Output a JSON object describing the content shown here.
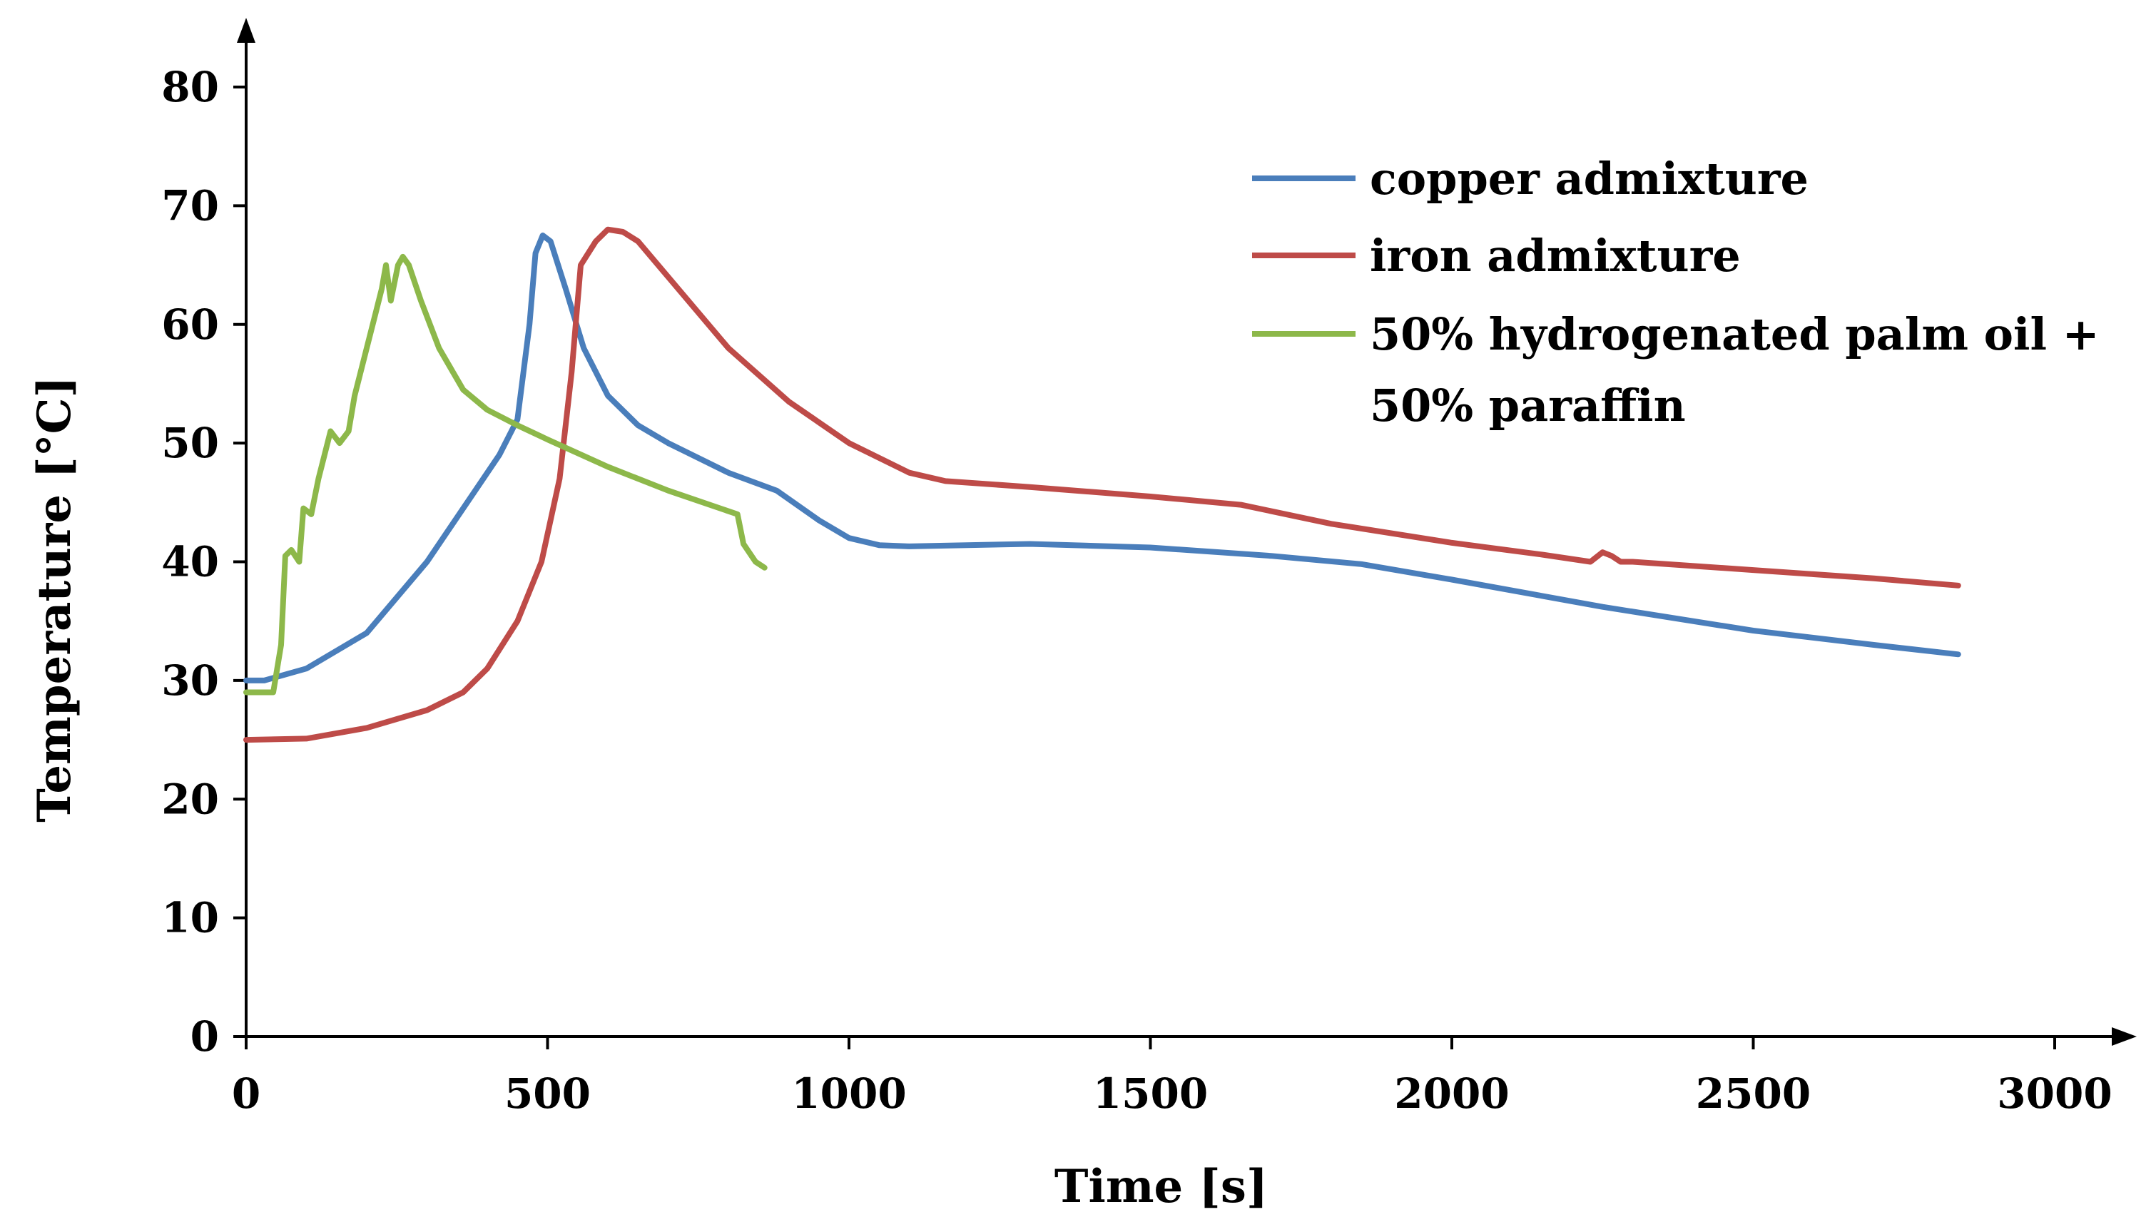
{
  "chart_data": {
    "type": "line",
    "title": "",
    "xlabel": "Time [s]",
    "ylabel": "Temperature [°C]",
    "xlim": [
      0,
      3000
    ],
    "ylim": [
      0,
      80
    ],
    "x_ticks": [
      0,
      500,
      1000,
      1500,
      2000,
      2500,
      3000
    ],
    "y_ticks": [
      0,
      10,
      20,
      30,
      40,
      50,
      60,
      70,
      80
    ],
    "x_tick_labels": [
      "0",
      "500",
      "1000",
      "1500",
      "2000",
      "2500",
      "3000"
    ],
    "y_tick_labels": [
      "0",
      "10",
      "20",
      "30",
      "40",
      "50",
      "60",
      "70",
      "80"
    ],
    "grid": false,
    "legend_position": "top-right",
    "series": [
      {
        "name": "copper admixture",
        "color": "#4a7ebb",
        "points": [
          [
            0,
            30
          ],
          [
            30,
            30
          ],
          [
            100,
            31
          ],
          [
            200,
            34
          ],
          [
            300,
            40
          ],
          [
            380,
            46
          ],
          [
            420,
            49
          ],
          [
            450,
            52
          ],
          [
            470,
            60
          ],
          [
            480,
            66
          ],
          [
            492,
            67.5
          ],
          [
            505,
            67
          ],
          [
            530,
            63
          ],
          [
            560,
            58
          ],
          [
            600,
            54
          ],
          [
            650,
            51.5
          ],
          [
            700,
            50
          ],
          [
            800,
            47.5
          ],
          [
            880,
            46
          ],
          [
            950,
            43.5
          ],
          [
            1000,
            42
          ],
          [
            1050,
            41.4
          ],
          [
            1100,
            41.3
          ],
          [
            1300,
            41.5
          ],
          [
            1500,
            41.2
          ],
          [
            1700,
            40.5
          ],
          [
            1850,
            39.8
          ],
          [
            2000,
            38.5
          ],
          [
            2250,
            36.2
          ],
          [
            2500,
            34.2
          ],
          [
            2700,
            33
          ],
          [
            2840,
            32.2
          ]
        ]
      },
      {
        "name": "iron admixture",
        "color": "#be4b48",
        "points": [
          [
            0,
            25
          ],
          [
            100,
            25.1
          ],
          [
            200,
            26
          ],
          [
            300,
            27.5
          ],
          [
            360,
            29
          ],
          [
            400,
            31
          ],
          [
            450,
            35
          ],
          [
            490,
            40
          ],
          [
            520,
            47
          ],
          [
            540,
            56
          ],
          [
            555,
            65
          ],
          [
            580,
            67
          ],
          [
            600,
            68
          ],
          [
            625,
            67.8
          ],
          [
            650,
            67
          ],
          [
            700,
            64
          ],
          [
            800,
            58
          ],
          [
            900,
            53.5
          ],
          [
            1000,
            50
          ],
          [
            1100,
            47.5
          ],
          [
            1160,
            46.8
          ],
          [
            1300,
            46.3
          ],
          [
            1500,
            45.5
          ],
          [
            1650,
            44.8
          ],
          [
            1800,
            43.2
          ],
          [
            2000,
            41.6
          ],
          [
            2150,
            40.6
          ],
          [
            2230,
            40
          ],
          [
            2250,
            40.8
          ],
          [
            2265,
            40.5
          ],
          [
            2280,
            40
          ],
          [
            2300,
            40
          ],
          [
            2500,
            39.3
          ],
          [
            2700,
            38.6
          ],
          [
            2840,
            38
          ]
        ]
      },
      {
        "name": "50% hydrogenated palm oil + 50% paraffin",
        "color": "#8db84a",
        "points": [
          [
            0,
            29
          ],
          [
            45,
            29
          ],
          [
            58,
            33
          ],
          [
            65,
            40.5
          ],
          [
            75,
            41
          ],
          [
            88,
            40
          ],
          [
            95,
            44.5
          ],
          [
            108,
            44
          ],
          [
            120,
            47
          ],
          [
            140,
            51
          ],
          [
            155,
            50
          ],
          [
            170,
            51
          ],
          [
            180,
            54
          ],
          [
            200,
            58
          ],
          [
            215,
            61
          ],
          [
            225,
            63
          ],
          [
            232,
            65
          ],
          [
            240,
            62
          ],
          [
            252,
            65
          ],
          [
            260,
            65.7
          ],
          [
            270,
            65
          ],
          [
            290,
            62
          ],
          [
            320,
            58
          ],
          [
            360,
            54.5
          ],
          [
            400,
            52.8
          ],
          [
            450,
            51.5
          ],
          [
            500,
            50.3
          ],
          [
            600,
            48
          ],
          [
            700,
            46
          ],
          [
            815,
            44
          ],
          [
            825,
            41.5
          ],
          [
            845,
            40
          ],
          [
            860,
            39.5
          ]
        ]
      }
    ]
  }
}
